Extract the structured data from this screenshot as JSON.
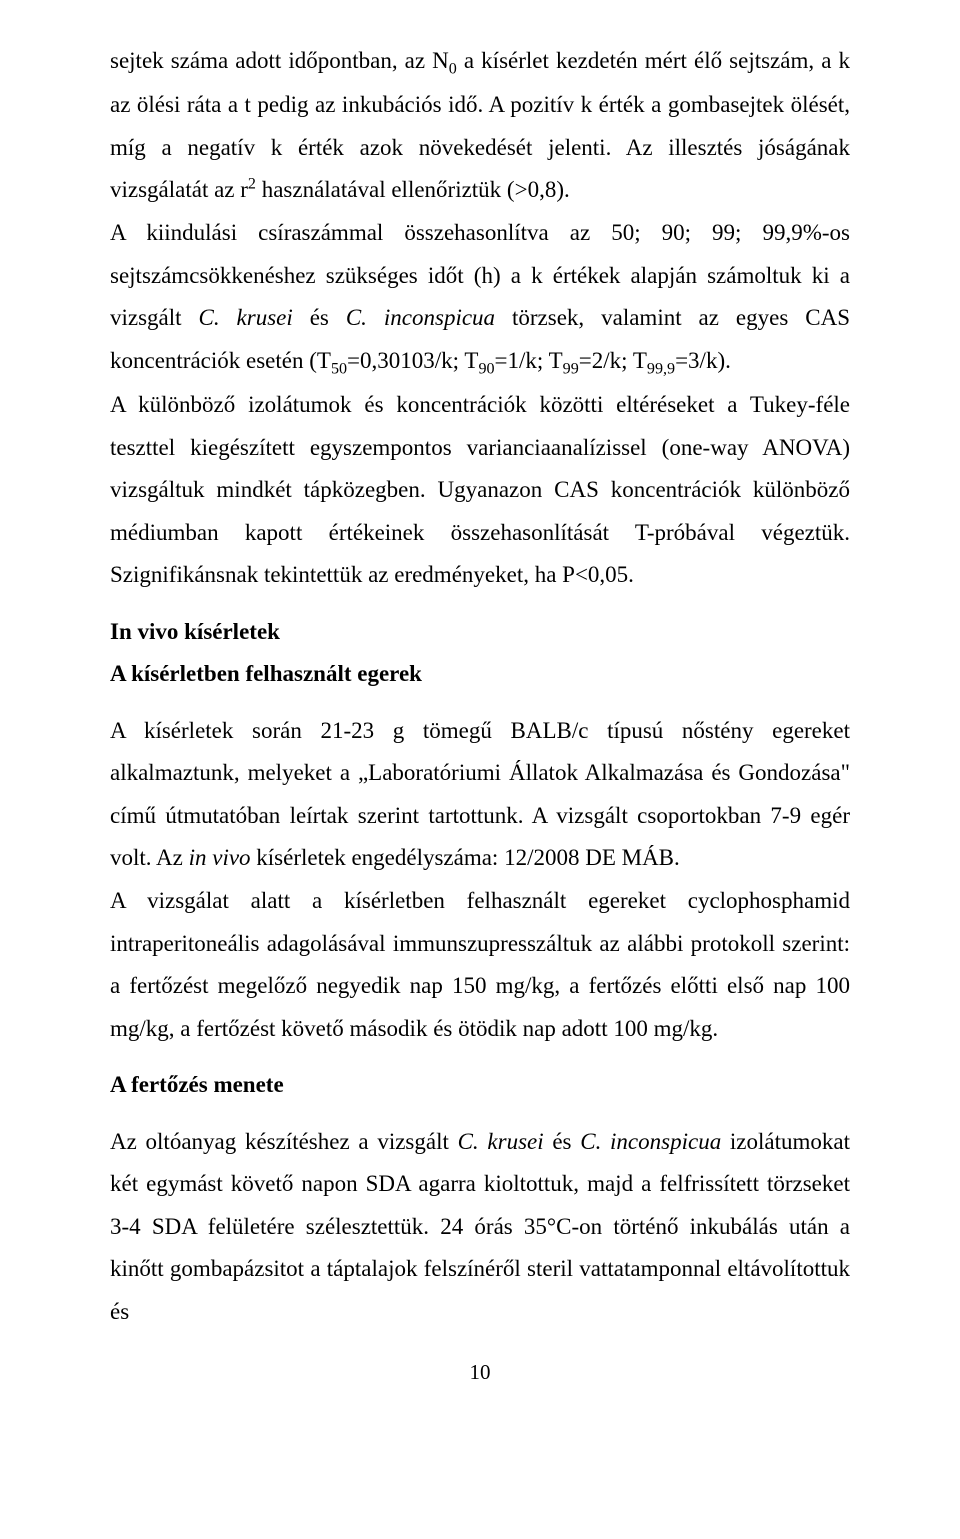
{
  "paragraphs": {
    "p1a": "sejtek száma adott időpontban, az N",
    "p1_sub1": "0",
    "p1b": " a kísérlet kezdetén mért élő sejtszám, a k az ölési ráta a t pedig az inkubációs idő. A pozitív k érték a gombasejtek ölését, míg a negatív k érték azok növekedését jelenti. Az illesztés jóságának vizsgálatát az r",
    "p1_sup1": "2",
    "p1c": " használatával ellenőriztük (>0,8).",
    "p2a": "A kiindulási csíraszámmal összehasonlítva az 50; 90; 99; 99,9%-os sejtszámcsökkenéshez szükséges időt (h) a k értékek alapján számoltuk ki a vizsgált ",
    "p2_it1": "C. krusei",
    "p2b": " és ",
    "p2_it2": "C. inconspicua",
    "p2c": " törzsek, valamint az egyes CAS koncentrációk esetén (T",
    "p2_sub1": "50",
    "p2d": "=0,30103/k; T",
    "p2_sub2": "90",
    "p2e": "=1/k; T",
    "p2_sub3": "99",
    "p2f": "=2/k; T",
    "p2_sub4": "99,9",
    "p2g": "=3/k).",
    "p3": "A különböző izolátumok és koncentrációk közötti eltéréseket a Tukey-féle teszttel kiegészített egyszempontos varianciaanalízissel (one-way ANOVA) vizsgáltuk mindkét tápközegben. Ugyanazon CAS koncentrációk különböző médiumban kapott értékeinek összehasonlítását T-próbával végeztük. Szignifikánsnak tekintettük az eredményeket, ha P<0,05.",
    "h1": "In vivo kísérletek",
    "h2": "A kísérletben felhasznált egerek",
    "p4a": "A kísérletek során 21-23 g tömegű BALB/c típusú nőstény egereket alkalmaztunk, melyeket a „Laboratóriumi Állatok Alkalmazása és Gondozása\" című útmutatóban leírtak szerint tartottunk. A vizsgált csoportokban 7-9 egér volt. Az ",
    "p4_it1": "in vivo",
    "p4b": " kísérletek engedélyszáma: 12/2008 DE MÁB.",
    "p5": "A vizsgálat alatt a kísérletben felhasznált egereket cyclophosphamid intraperitoneális adagolásával immunszupresszáltuk az alábbi protokoll szerint: a fertőzést megelőző negyedik nap 150 mg/kg, a fertőzés előtti első nap 100 mg/kg, a fertőzést követő második és ötödik nap adott 100 mg/kg.",
    "h3": "A fertőzés menete",
    "p6a": "Az oltóanyag készítéshez a vizsgált ",
    "p6_it1": "C. krusei",
    "p6b": " és ",
    "p6_it2": "C. inconspicua",
    "p6c": " izolátumokat két egymást követő napon SDA agarra kioltottuk, majd a felfrissített törzseket 3-4 SDA felületére szélesztettük. 24 órás 35°C-on történő inkubálás után a kinőtt gombapázsitot a táptalajok felszínéről steril vattatamponnal eltávolítottuk és",
    "pagenum": "10"
  }
}
